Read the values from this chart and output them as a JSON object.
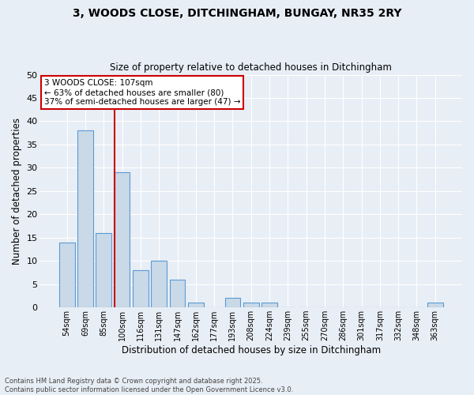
{
  "title_line1": "3, WOODS CLOSE, DITCHINGHAM, BUNGAY, NR35 2RY",
  "title_line2": "Size of property relative to detached houses in Ditchingham",
  "xlabel": "Distribution of detached houses by size in Ditchingham",
  "ylabel": "Number of detached properties",
  "bar_color": "#c9d9e8",
  "bar_edge_color": "#5b9bd5",
  "categories": [
    "54sqm",
    "69sqm",
    "85sqm",
    "100sqm",
    "116sqm",
    "131sqm",
    "147sqm",
    "162sqm",
    "177sqm",
    "193sqm",
    "208sqm",
    "224sqm",
    "239sqm",
    "255sqm",
    "270sqm",
    "286sqm",
    "301sqm",
    "317sqm",
    "332sqm",
    "348sqm",
    "363sqm"
  ],
  "values": [
    14,
    38,
    16,
    29,
    8,
    10,
    6,
    1,
    0,
    2,
    1,
    1,
    0,
    0,
    0,
    0,
    0,
    0,
    0,
    0,
    1
  ],
  "ylim": [
    0,
    50
  ],
  "yticks": [
    0,
    5,
    10,
    15,
    20,
    25,
    30,
    35,
    40,
    45,
    50
  ],
  "vline_x_index": 3,
  "vline_color": "#cc0000",
  "annotation_text": "3 WOODS CLOSE: 107sqm\n← 63% of detached houses are smaller (80)\n37% of semi-detached houses are larger (47) →",
  "annotation_box_color": "#ffffff",
  "annotation_box_edge": "#cc0000",
  "background_color": "#e8eef5",
  "grid_color": "#ffffff",
  "footer": "Contains HM Land Registry data © Crown copyright and database right 2025.\nContains public sector information licensed under the Open Government Licence v3.0."
}
